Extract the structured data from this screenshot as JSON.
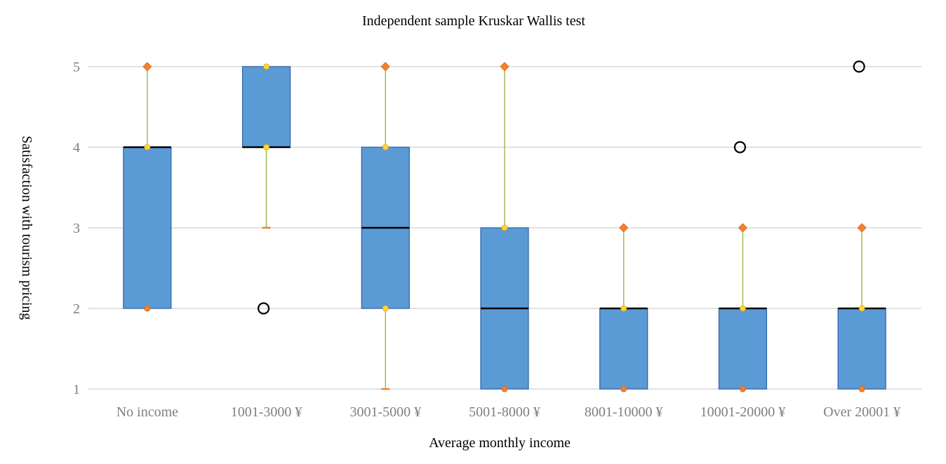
{
  "chart_data": {
    "type": "box",
    "title": "Independent sample Kruskar Wallis test",
    "xlabel": "Average monthly income",
    "ylabel": "Satisfaction with tourism pricing",
    "ylim": [
      1,
      5
    ],
    "yticks": [
      "1",
      "2",
      "3",
      "4",
      "5"
    ],
    "grid": true,
    "categories": [
      "No income",
      "1001-3000 ¥",
      "3001-5000 ¥",
      "5001-8000 ¥",
      "8001-10000 ¥",
      "10001-20000 ¥",
      "Over 20001 ¥"
    ],
    "boxes": [
      {
        "q1": 2,
        "median": 4,
        "q3": 4,
        "whisker_low": 2,
        "whisker_high": 5,
        "outliers": []
      },
      {
        "q1": 4,
        "median": 4,
        "q3": 5,
        "whisker_low": 3,
        "whisker_high": 5,
        "outliers": [
          2
        ]
      },
      {
        "q1": 2,
        "median": 3,
        "q3": 4,
        "whisker_low": 1,
        "whisker_high": 5,
        "outliers": []
      },
      {
        "q1": 1,
        "median": 2,
        "q3": 3,
        "whisker_low": 1,
        "whisker_high": 5,
        "outliers": []
      },
      {
        "q1": 1,
        "median": 2,
        "q3": 2,
        "whisker_low": 1,
        "whisker_high": 3,
        "outliers": []
      },
      {
        "q1": 1,
        "median": 2,
        "q3": 2,
        "whisker_low": 1,
        "whisker_high": 3,
        "outliers": [
          4
        ]
      },
      {
        "q1": 1,
        "median": 2,
        "q3": 2,
        "whisker_low": 1,
        "whisker_high": 3,
        "outliers": [
          5
        ]
      }
    ],
    "colors": {
      "box_fill": "#5b9bd5",
      "box_stroke": "#2e5fa8",
      "median": "#000000",
      "whisker": "#9bbb59",
      "max_marker": "#f4812a",
      "quartile_marker": "#ffd33a",
      "gridline": "#d9d9d9",
      "outlier": "#000000"
    }
  }
}
